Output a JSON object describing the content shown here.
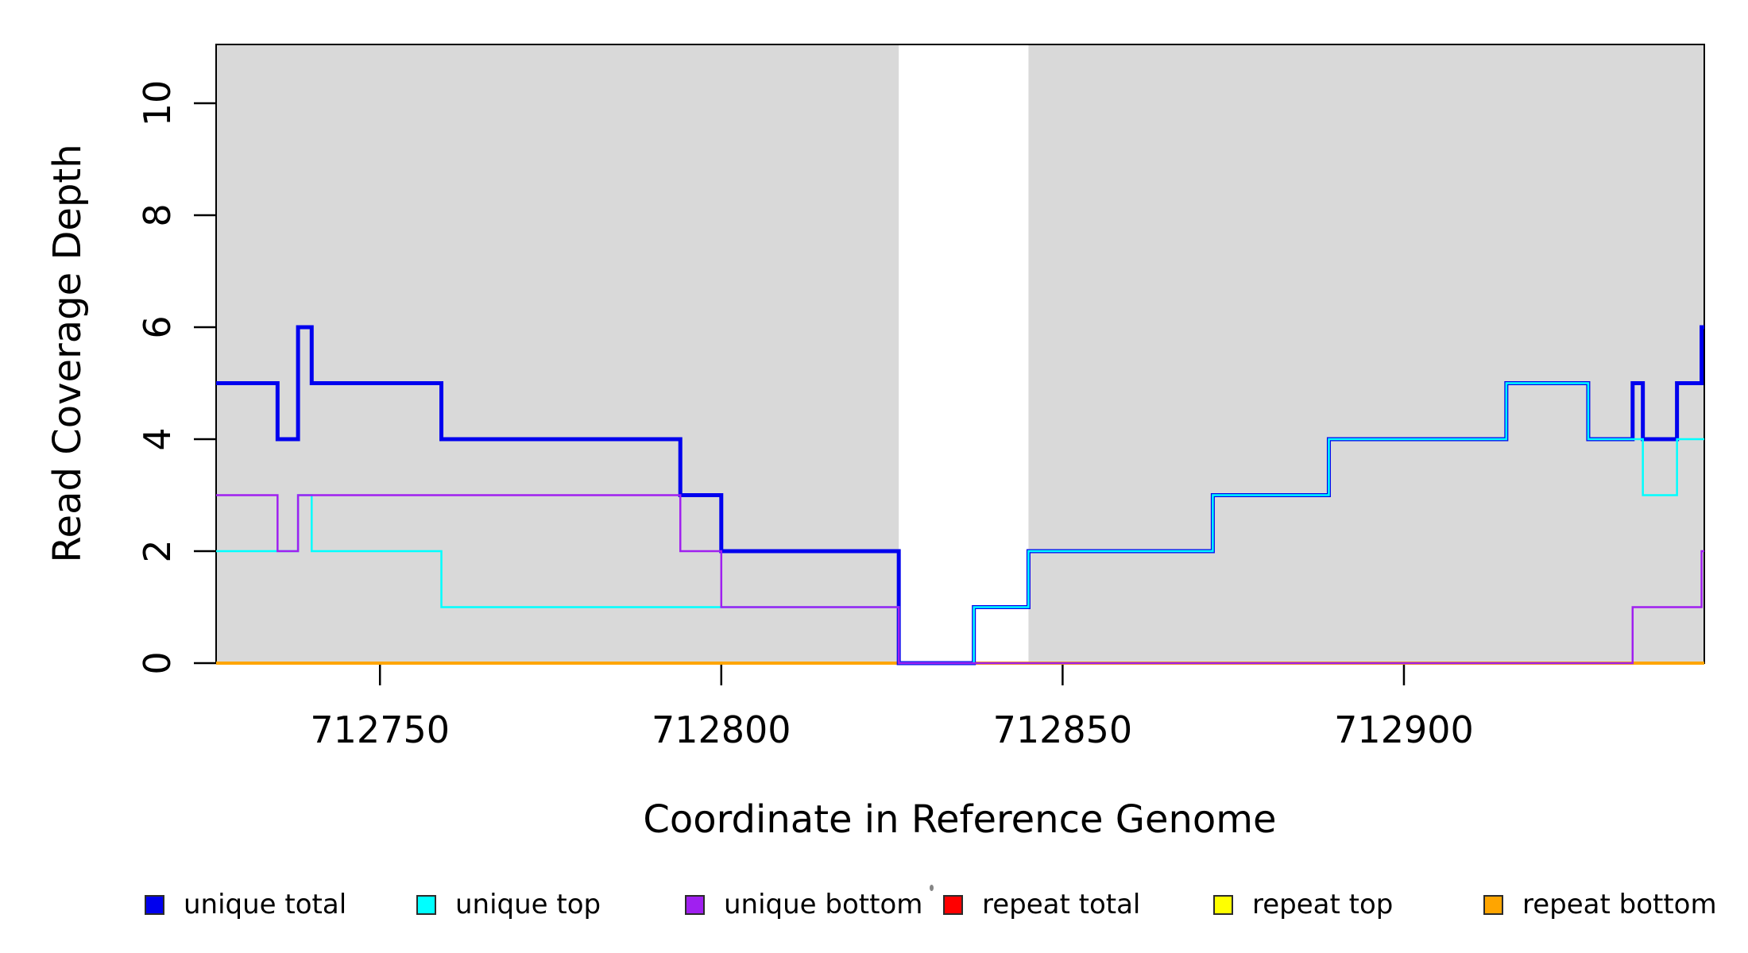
{
  "figure": {
    "x_axis_title": "Coordinate in Reference Genome",
    "y_axis_title": "Read Coverage Depth"
  },
  "chart_data": {
    "type": "line",
    "subtype": "step-coverage",
    "title": "",
    "xlabel": "Coordinate in Reference Genome",
    "ylabel": "Read Coverage Depth",
    "xlim": [
      712726,
      712944
    ],
    "ylim": [
      0,
      11.05
    ],
    "xticks": [
      712750,
      712800,
      712850,
      712900
    ],
    "yticks": [
      0,
      2,
      4,
      6,
      8,
      10
    ],
    "grid": false,
    "plot_background": "#FFFFFF",
    "shaded_regions": [
      {
        "name": "left",
        "from": 712726,
        "to": 712826,
        "color": "#D9D9D9"
      },
      {
        "name": "right",
        "from": 712845,
        "to": 712944,
        "color": "#D9D9D9"
      }
    ],
    "series": [
      {
        "name": "repeat total",
        "color": "#FF0000",
        "width": 4,
        "points": [
          [
            712726,
            0
          ],
          [
            712944,
            0
          ]
        ]
      },
      {
        "name": "repeat top",
        "color": "#FFFF00",
        "width": 4,
        "points": [
          [
            712726,
            0
          ],
          [
            712944,
            0
          ]
        ]
      },
      {
        "name": "repeat bottom",
        "color": "#FFA500",
        "width": 4,
        "points": [
          [
            712726,
            0
          ],
          [
            712944,
            0
          ]
        ]
      },
      {
        "name": "unique total",
        "color": "#0000EE",
        "width": 5,
        "points": [
          [
            712726,
            5
          ],
          [
            712735,
            5
          ],
          [
            712735,
            4
          ],
          [
            712738,
            4
          ],
          [
            712738,
            6
          ],
          [
            712740,
            6
          ],
          [
            712740,
            5
          ],
          [
            712759,
            5
          ],
          [
            712759,
            4
          ],
          [
            712794,
            4
          ],
          [
            712794,
            3
          ],
          [
            712800,
            3
          ],
          [
            712800,
            2
          ],
          [
            712826,
            2
          ],
          [
            712826,
            0
          ],
          [
            712837,
            0
          ],
          [
            712837,
            1
          ],
          [
            712845,
            1
          ],
          [
            712845,
            2
          ],
          [
            712872,
            2
          ],
          [
            712872,
            3
          ],
          [
            712889,
            3
          ],
          [
            712889,
            4
          ],
          [
            712915,
            4
          ],
          [
            712915,
            5
          ],
          [
            712927,
            5
          ],
          [
            712927,
            4
          ],
          [
            712933.5,
            4
          ],
          [
            712933.5,
            5
          ],
          [
            712935,
            5
          ],
          [
            712935,
            4
          ],
          [
            712940,
            4
          ],
          [
            712940,
            5
          ],
          [
            712943.6,
            5
          ],
          [
            712943.6,
            6
          ],
          [
            712944,
            6
          ]
        ]
      },
      {
        "name": "unique top",
        "color": "#00FFFF",
        "width": 2.5,
        "points": [
          [
            712726,
            2
          ],
          [
            712738,
            2
          ],
          [
            712738,
            3
          ],
          [
            712740,
            3
          ],
          [
            712740,
            2
          ],
          [
            712759,
            2
          ],
          [
            712759,
            1
          ],
          [
            712826,
            1
          ],
          [
            712826,
            0
          ],
          [
            712837,
            0
          ],
          [
            712837,
            1
          ],
          [
            712845,
            1
          ],
          [
            712845,
            2
          ],
          [
            712872,
            2
          ],
          [
            712872,
            3
          ],
          [
            712889,
            3
          ],
          [
            712889,
            4
          ],
          [
            712915,
            4
          ],
          [
            712915,
            5
          ],
          [
            712927,
            5
          ],
          [
            712927,
            4
          ],
          [
            712935,
            4
          ],
          [
            712935,
            3
          ],
          [
            712940,
            3
          ],
          [
            712940,
            4
          ],
          [
            712944,
            4
          ]
        ]
      },
      {
        "name": "unique bottom",
        "color": "#A020F0",
        "width": 2.5,
        "points": [
          [
            712726,
            3
          ],
          [
            712735,
            3
          ],
          [
            712735,
            2
          ],
          [
            712738,
            2
          ],
          [
            712738,
            3
          ],
          [
            712794,
            3
          ],
          [
            712794,
            2
          ],
          [
            712800,
            2
          ],
          [
            712800,
            1
          ],
          [
            712826,
            1
          ],
          [
            712826,
            0
          ],
          [
            712933.5,
            0
          ],
          [
            712933.5,
            1
          ],
          [
            712943.6,
            1
          ],
          [
            712943.6,
            2
          ],
          [
            712944,
            2
          ]
        ]
      }
    ],
    "legend": {
      "position": "bottom",
      "items": [
        {
          "label": "unique total",
          "color": "#0000EE"
        },
        {
          "label": "unique top",
          "color": "#00FFFF"
        },
        {
          "label": "unique bottom",
          "color": "#A020F0"
        },
        {
          "label": "repeat total",
          "color": "#FF0000"
        },
        {
          "label": "repeat top",
          "color": "#FFFF00"
        },
        {
          "label": "repeat bottom",
          "color": "#FFA500"
        }
      ]
    }
  }
}
